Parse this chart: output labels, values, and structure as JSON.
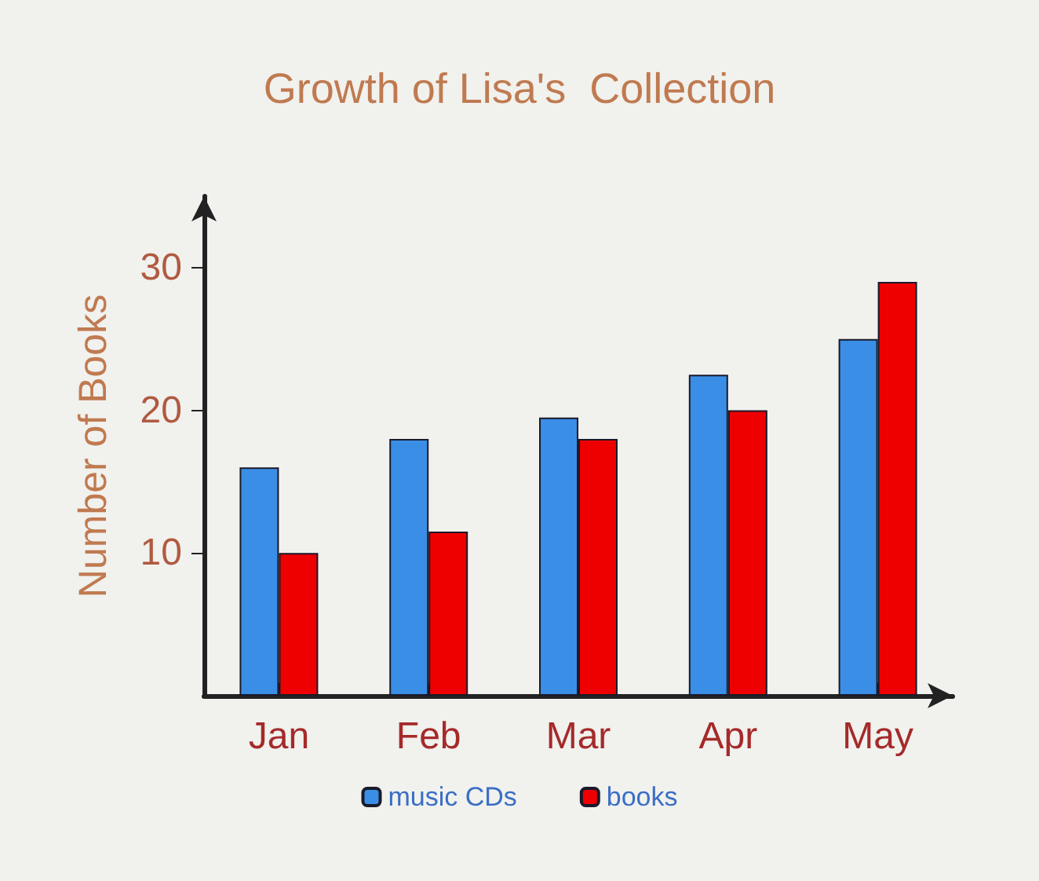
{
  "chart_data": {
    "type": "bar",
    "title": "Growth of Lisa's  Collection",
    "ylabel": "Number of Books",
    "categories": [
      "Jan",
      "Feb",
      "Mar",
      "Apr",
      "May"
    ],
    "series": [
      {
        "name": "music CDs",
        "color": "#3a8ee6",
        "values": [
          16,
          18,
          19.5,
          22.5,
          25
        ]
      },
      {
        "name": "books",
        "color": "#ee0000",
        "values": [
          10,
          11.5,
          18,
          20,
          29
        ]
      }
    ],
    "ylim": [
      0,
      35
    ],
    "yticks": [
      10,
      20,
      30
    ],
    "grid": false,
    "legend": "bottom"
  }
}
